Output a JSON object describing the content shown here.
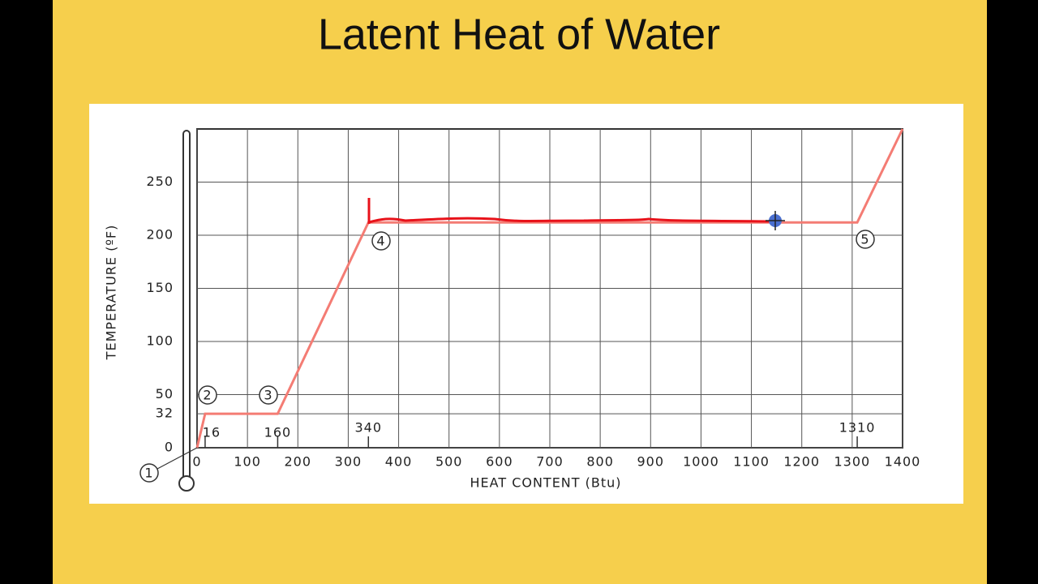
{
  "chart_data": {
    "type": "line",
    "title": "Latent Heat of Water",
    "x_label": "HEAT CONTENT (Btu)",
    "y_label": "TEMPERATURE (ºF)",
    "x": [
      0,
      16,
      160,
      340,
      1310,
      1400
    ],
    "series": [
      {
        "color": "#f47c74",
        "values": [
          0,
          32,
          32,
          212,
          212,
          300
        ]
      }
    ],
    "xlim": [
      0,
      1400
    ],
    "ylim": [
      0,
      300
    ],
    "xticks": [
      0,
      100,
      200,
      300,
      400,
      500,
      600,
      700,
      800,
      900,
      1000,
      1100,
      1200,
      1300,
      1400
    ],
    "yticks": [
      0,
      32,
      50,
      100,
      150,
      200,
      250
    ],
    "x_markers": [
      16,
      160,
      340,
      1310
    ],
    "annotations": [
      "1",
      "2",
      "3",
      "4",
      "5"
    ],
    "grid": true
  }
}
